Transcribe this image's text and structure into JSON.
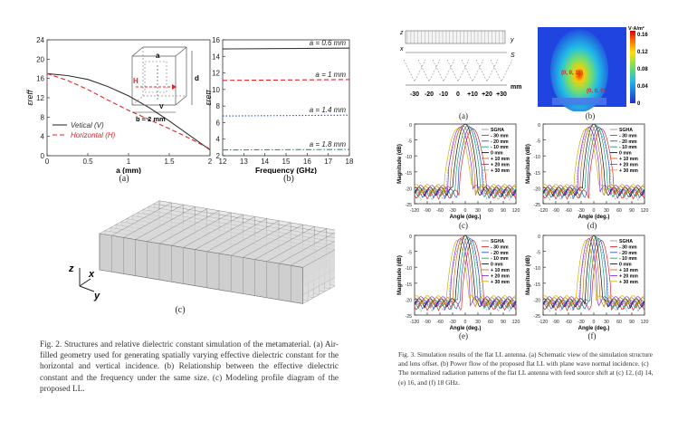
{
  "fig2": {
    "sub_a": "(a)",
    "sub_b": "(b)",
    "sub_c": "(c)",
    "caption": "Fig. 2.    Structures and relative dielectric constant simulation of the metamaterial. (a) Air-filled geometry used for generating spatially varying effective dielectric constant for the horizontal and vertical incidence. (b) Relationship between the effective dielectric constant and the frequency under the same size. (c) Modeling profile diagram of the proposed LL.",
    "inset": {
      "a_label": "a",
      "d_label": "d",
      "h_label": "H",
      "v_label": "V",
      "b_label": "b = 2 mm"
    },
    "axes_c": {
      "z": "z",
      "x": "x",
      "y": "y"
    }
  },
  "fig3": {
    "sub_a": "(a)",
    "sub_b": "(b)",
    "sub_c": "(c)",
    "sub_d": "(d)",
    "sub_e": "(e)",
    "sub_f": "(f)",
    "caption": "Fig. 3.    Simulation results of the flat LL antenna. (a) Schematic view of the simulation structure and lens offset. (b) Power flow of the proposed flat LL with plane wave normal incidence. (c) The normalized radiation patterns of the flat LL antenna with feed source shift at (c) 12, (d) 14, (e) 16, and (f) 18 GHz.",
    "schematic": {
      "z": "z",
      "x": "x",
      "y": "y",
      "s": "S",
      "unit": "mm",
      "ticks": [
        "-30",
        "-20",
        "-10",
        "0",
        "+10",
        "+20",
        "+30"
      ]
    },
    "powerflow": {
      "unit": "V·A/m²",
      "ticks": [
        "0.16",
        "0.12",
        "0.08",
        "0.04",
        "0"
      ],
      "marker1": "(0, 0, 15)",
      "marker2": "(0, 0, 0)"
    },
    "pattern_legend": [
      "SGHA",
      "- 30 mm",
      "- 20 mm",
      "- 10 mm",
      "0 mm",
      "+ 10 mm",
      "+ 20 mm",
      "+ 30 mm"
    ],
    "pattern_axes": {
      "ylabel": "Magnitude (dB)",
      "xlabel": "Angle (deg.)"
    }
  },
  "chart_data": [
    {
      "type": "line",
      "id": "fig2a",
      "title": "",
      "xlabel": "a (mm)",
      "ylabel": "εreff",
      "xlim": [
        0,
        2
      ],
      "ylim": [
        0,
        24
      ],
      "xticks": [
        "0",
        "0.5",
        "1",
        "1.5",
        "2"
      ],
      "yticks": [
        "0",
        "4",
        "8",
        "12",
        "16",
        "20",
        "24"
      ],
      "series": [
        {
          "name": "Vetical (V)",
          "color": "#333333",
          "style": "solid",
          "x": [
            0,
            0.25,
            0.5,
            0.75,
            1.0,
            1.25,
            1.5,
            1.75,
            2.0
          ],
          "y": [
            17.0,
            16.6,
            15.8,
            14.3,
            12.4,
            10.0,
            7.2,
            4.2,
            1.2
          ]
        },
        {
          "name": "Horizontal (H)",
          "color": "#e0242a",
          "style": "dashed",
          "x": [
            0,
            0.25,
            0.5,
            0.75,
            1.0,
            1.25,
            1.5,
            1.75,
            2.0
          ],
          "y": [
            17.0,
            15.6,
            13.7,
            11.5,
            9.4,
            7.5,
            5.6,
            3.6,
            1.4
          ]
        }
      ],
      "legend": "bottom-left"
    },
    {
      "type": "line",
      "id": "fig2b",
      "xlabel": "Frequency (GHz)",
      "ylabel": "εreff",
      "xlim": [
        12,
        18
      ],
      "ylim": [
        2,
        16
      ],
      "xticks": [
        "12",
        "13",
        "14",
        "15",
        "16",
        "17",
        "18"
      ],
      "yticks": [
        "2",
        "4",
        "6",
        "8",
        "10",
        "12",
        "14",
        "16"
      ],
      "series": [
        {
          "name": "a = 0.6 mm",
          "color": "#333333",
          "style": "solid",
          "x": [
            12,
            18
          ],
          "y": [
            14.9,
            15.0
          ]
        },
        {
          "name": "a = 1 mm",
          "color": "#e0242a",
          "style": "dashed",
          "x": [
            12,
            18
          ],
          "y": [
            11.1,
            11.2
          ]
        },
        {
          "name": "a = 1.4 mm",
          "color": "#2b56c8",
          "style": "dotted",
          "x": [
            12,
            18
          ],
          "y": [
            6.8,
            6.9
          ]
        },
        {
          "name": "a = 1.8 mm",
          "color": "#1b9e77",
          "style": "dashdot",
          "x": [
            12,
            18
          ],
          "y": [
            2.7,
            2.75
          ]
        }
      ]
    },
    {
      "type": "line",
      "id": "fig3-patterns",
      "panels": [
        "(c)",
        "(d)",
        "(e)",
        "(f)"
      ],
      "xlabel": "Angle (deg.)",
      "ylabel": "Magnitude (dB)",
      "xlim": [
        -120,
        120
      ],
      "ylim": [
        -25,
        0
      ],
      "xticks": [
        "-120",
        "-90",
        "-60",
        "-30",
        "0",
        "30",
        "60",
        "90",
        "120"
      ],
      "yticks": [
        "0",
        "-5",
        "-10",
        "-15",
        "-20",
        "-25"
      ],
      "series": [
        {
          "name": "SGHA",
          "offset_mm": null,
          "color": "#999999",
          "peak_angle_deg": 0
        },
        {
          "name": "- 30 mm",
          "offset_mm": -30,
          "color": "#e0242a",
          "peak_angle_deg": 18
        },
        {
          "name": "- 20 mm",
          "offset_mm": -20,
          "color": "#2b56c8",
          "peak_angle_deg": 12
        },
        {
          "name": "- 10 mm",
          "offset_mm": -10,
          "color": "#1b9e77",
          "peak_angle_deg": 6
        },
        {
          "name": "0 mm",
          "offset_mm": 0,
          "color": "#111111",
          "peak_angle_deg": 0
        },
        {
          "name": "+ 10 mm",
          "offset_mm": 10,
          "color": "#d2691e",
          "peak_angle_deg": -6
        },
        {
          "name": "+ 20 mm",
          "offset_mm": 20,
          "color": "#8a2be2",
          "peak_angle_deg": -12
        },
        {
          "name": "+ 30 mm",
          "offset_mm": 30,
          "color": "#c8b400",
          "peak_angle_deg": -18
        }
      ],
      "peak_db": 0,
      "sidelobe_floor_db": -22
    }
  ]
}
